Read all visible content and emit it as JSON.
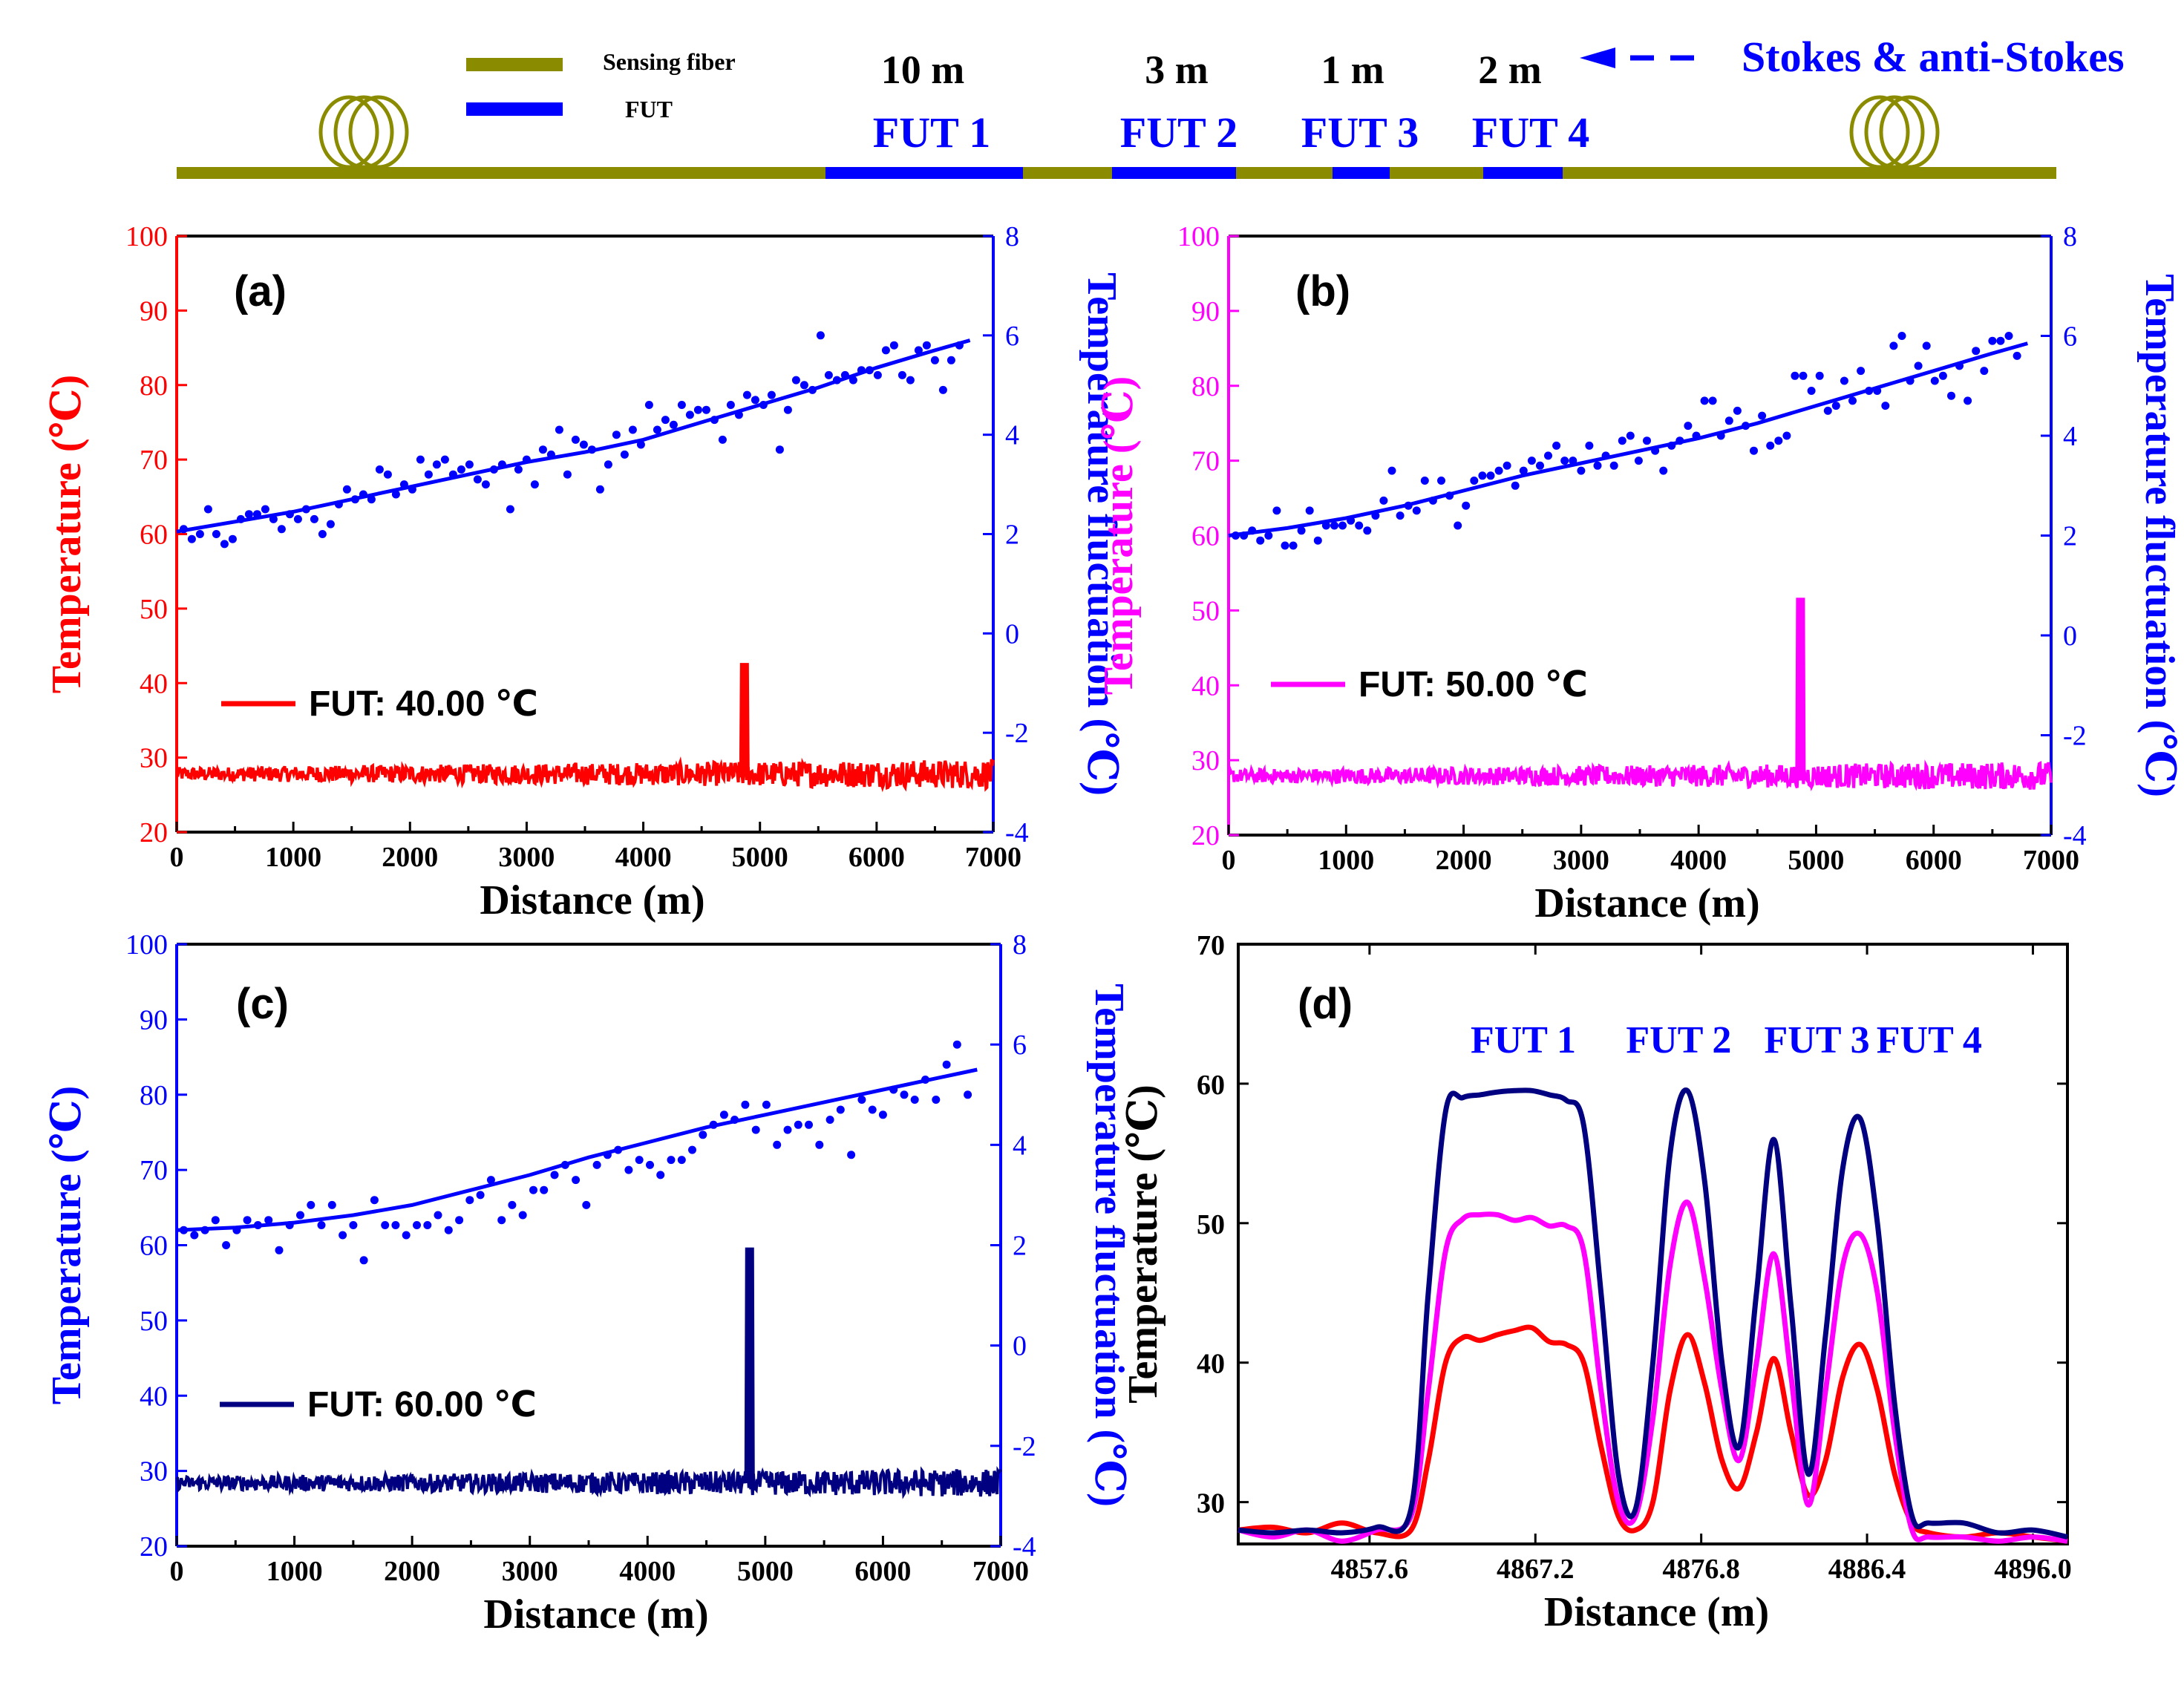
{
  "colors": {
    "fiber": "#8B8B00",
    "fut": "#0000FF",
    "series_a": "#FF0000",
    "series_b": "#FF00FF",
    "series_c": "#000080",
    "fluct": "#0000FF",
    "axis": "#000000"
  },
  "schematic": {
    "legend": {
      "sensing_fiber": "Sensing fiber",
      "fut": "FUT"
    },
    "direction_label": "Stokes & anti-Stokes",
    "segments": [
      {
        "length": "10 m",
        "label": "FUT 1"
      },
      {
        "length": "3 m",
        "label": "FUT 2"
      },
      {
        "length": "1 m",
        "label": "FUT 3"
      },
      {
        "length": "2 m",
        "label": "FUT 4"
      }
    ]
  },
  "chart_data": [
    {
      "id": "a",
      "type": "line",
      "panel_label": "(a)",
      "xlabel": "Distance (m)",
      "ylabel_left": "Temperature (℃)",
      "ylabel_right": "Temperature fluctuation (℃)",
      "xlim": [
        0,
        7000
      ],
      "ylim_left": [
        20,
        100
      ],
      "ylim_right": [
        -4,
        8
      ],
      "x_ticks": [
        0,
        1000,
        2000,
        3000,
        4000,
        5000,
        6000,
        7000
      ],
      "y_ticks_left": [
        20,
        30,
        40,
        50,
        60,
        70,
        80,
        90,
        100
      ],
      "y_ticks_right": [
        -4,
        -2,
        0,
        2,
        4,
        6,
        8
      ],
      "legend": "FUT: 40.00 ℃",
      "series_color": "#FF0000",
      "temperature_trace": {
        "baseline": 27.8,
        "noise_amp_start": 0.9,
        "noise_amp_end": 2.0,
        "range": [
          0,
          7000
        ],
        "peak": {
          "x": 4867,
          "value": 42.5
        }
      },
      "fluctuation_fit": {
        "x": [
          0,
          500,
          1000,
          1500,
          2000,
          2500,
          3000,
          3500,
          4000,
          4500,
          5000,
          5500,
          6000,
          6500,
          6800
        ],
        "y": [
          2.05,
          2.25,
          2.45,
          2.7,
          2.95,
          3.2,
          3.45,
          3.65,
          3.9,
          4.25,
          4.6,
          4.95,
          5.35,
          5.7,
          5.9
        ]
      },
      "fluctuation_points": {
        "x": [
          60,
          130,
          200,
          270,
          340,
          410,
          480,
          550,
          620,
          690,
          760,
          830,
          900,
          970,
          1040,
          1110,
          1180,
          1250,
          1320,
          1390,
          1460,
          1530,
          1600,
          1670,
          1740,
          1810,
          1880,
          1950,
          2020,
          2090,
          2160,
          2230,
          2300,
          2370,
          2440,
          2510,
          2580,
          2650,
          2720,
          2790,
          2860,
          2930,
          3000,
          3070,
          3140,
          3210,
          3280,
          3350,
          3420,
          3490,
          3560,
          3630,
          3700,
          3770,
          3840,
          3910,
          3980,
          4050,
          4120,
          4190,
          4260,
          4330,
          4400,
          4470,
          4540,
          4610,
          4680,
          4750,
          4820,
          4890,
          4960,
          5030,
          5100,
          5170,
          5240,
          5310,
          5380,
          5450,
          5520,
          5590,
          5660,
          5730,
          5800,
          5870,
          5940,
          6010,
          6080,
          6150,
          6220,
          6290,
          6360,
          6430,
          6500,
          6570,
          6640,
          6710
        ],
        "y": [
          2.1,
          1.9,
          2.0,
          2.5,
          2.0,
          1.8,
          1.9,
          2.3,
          2.4,
          2.4,
          2.5,
          2.3,
          2.1,
          2.4,
          2.3,
          2.5,
          2.3,
          2.0,
          2.2,
          2.6,
          2.9,
          2.7,
          2.8,
          2.7,
          3.3,
          3.2,
          2.8,
          3.0,
          2.9,
          3.5,
          3.2,
          3.4,
          3.5,
          3.2,
          3.3,
          3.4,
          3.1,
          3.0,
          3.3,
          3.4,
          2.5,
          3.3,
          3.5,
          3.0,
          3.7,
          3.6,
          4.1,
          3.2,
          3.9,
          3.8,
          3.7,
          2.9,
          3.4,
          4.0,
          3.6,
          4.1,
          3.8,
          4.6,
          4.1,
          4.3,
          4.2,
          4.6,
          4.4,
          4.5,
          4.5,
          4.3,
          3.9,
          4.6,
          4.4,
          4.8,
          4.7,
          4.6,
          4.8,
          3.7,
          4.5,
          5.1,
          5.0,
          4.9,
          6.0,
          5.2,
          5.1,
          5.2,
          5.1,
          5.3,
          5.3,
          5.2,
          5.7,
          5.8,
          5.2,
          5.1,
          5.7,
          5.8,
          5.5,
          4.9,
          5.5,
          5.8
        ]
      }
    },
    {
      "id": "b",
      "type": "line",
      "panel_label": "(b)",
      "xlabel": "Distance (m)",
      "ylabel_left": "Temperature (℃)",
      "ylabel_right": "Temperature fluctuation (℃)",
      "xlim": [
        0,
        7000
      ],
      "ylim_left": [
        20,
        100
      ],
      "ylim_right": [
        -4,
        8
      ],
      "x_ticks": [
        0,
        1000,
        2000,
        3000,
        4000,
        5000,
        6000,
        7000
      ],
      "y_ticks_left": [
        20,
        30,
        40,
        50,
        60,
        70,
        80,
        90,
        100
      ],
      "y_ticks_right": [
        -4,
        -2,
        0,
        2,
        4,
        6,
        8
      ],
      "legend": "FUT: 50.00 ℃",
      "series_color": "#FF00FF",
      "temperature_trace": {
        "baseline": 27.9,
        "noise_amp_start": 0.9,
        "noise_amp_end": 1.9,
        "range": [
          0,
          7000
        ],
        "peak": {
          "x": 4867,
          "value": 51.5
        }
      },
      "fluctuation_fit": {
        "x": [
          0,
          500,
          1000,
          1500,
          2000,
          2500,
          3000,
          3500,
          4000,
          4500,
          5000,
          5500,
          6000,
          6500,
          6800
        ],
        "y": [
          2.0,
          2.15,
          2.35,
          2.6,
          2.9,
          3.2,
          3.45,
          3.7,
          3.95,
          4.25,
          4.6,
          4.95,
          5.3,
          5.65,
          5.85
        ]
      },
      "fluctuation_points": {
        "x": [
          60,
          130,
          200,
          270,
          340,
          410,
          480,
          550,
          620,
          690,
          760,
          830,
          900,
          970,
          1040,
          1110,
          1180,
          1250,
          1320,
          1390,
          1460,
          1530,
          1600,
          1670,
          1740,
          1810,
          1880,
          1950,
          2020,
          2090,
          2160,
          2230,
          2300,
          2370,
          2440,
          2510,
          2580,
          2650,
          2720,
          2790,
          2860,
          2930,
          3000,
          3070,
          3140,
          3210,
          3280,
          3350,
          3420,
          3490,
          3560,
          3630,
          3700,
          3770,
          3840,
          3910,
          3980,
          4050,
          4120,
          4190,
          4260,
          4330,
          4400,
          4470,
          4540,
          4610,
          4680,
          4750,
          4820,
          4890,
          4960,
          5030,
          5100,
          5170,
          5240,
          5310,
          5380,
          5450,
          5520,
          5590,
          5660,
          5730,
          5800,
          5870,
          5940,
          6010,
          6080,
          6150,
          6220,
          6290,
          6360,
          6430,
          6500,
          6570,
          6640,
          6710
        ],
        "y": [
          2.0,
          2.0,
          2.1,
          1.9,
          2.0,
          2.5,
          1.8,
          1.8,
          2.1,
          2.5,
          1.9,
          2.2,
          2.2,
          2.2,
          2.3,
          2.2,
          2.1,
          2.4,
          2.7,
          3.3,
          2.4,
          2.6,
          2.5,
          3.1,
          2.7,
          3.1,
          2.8,
          2.2,
          2.6,
          3.1,
          3.2,
          3.2,
          3.3,
          3.4,
          3.0,
          3.3,
          3.5,
          3.4,
          3.6,
          3.8,
          3.5,
          3.5,
          3.3,
          3.8,
          3.4,
          3.6,
          3.4,
          3.9,
          4.0,
          3.5,
          3.9,
          3.7,
          3.3,
          3.8,
          3.9,
          4.2,
          4.0,
          4.7,
          4.7,
          4.0,
          4.3,
          4.5,
          4.2,
          3.7,
          4.4,
          3.8,
          3.9,
          4.0,
          5.2,
          5.2,
          4.9,
          5.2,
          4.5,
          4.6,
          5.1,
          4.7,
          5.3,
          4.9,
          4.9,
          4.6,
          5.8,
          6.0,
          5.1,
          5.4,
          5.8,
          5.1,
          5.2,
          4.8,
          5.4,
          4.7,
          5.7,
          5.3,
          5.9,
          5.9,
          6.0,
          5.6
        ]
      }
    },
    {
      "id": "c",
      "type": "line",
      "panel_label": "(c)",
      "xlabel": "Distance (m)",
      "ylabel_left": "Temperature (℃)",
      "ylabel_right": "Temperature fluctuation (℃)",
      "xlim": [
        0,
        7000
      ],
      "ylim_left": [
        20,
        100
      ],
      "ylim_right": [
        -4,
        8
      ],
      "x_ticks": [
        0,
        1000,
        2000,
        3000,
        4000,
        5000,
        6000,
        7000
      ],
      "y_ticks_left": [
        20,
        30,
        40,
        50,
        60,
        70,
        80,
        90,
        100
      ],
      "y_ticks_right": [
        -4,
        -2,
        0,
        2,
        4,
        6,
        8
      ],
      "legend": "FUT: 60.00 ℃",
      "series_color": "#000080",
      "temperature_trace": {
        "baseline": 28.4,
        "noise_amp_start": 0.9,
        "noise_amp_end": 1.9,
        "range": [
          0,
          7000
        ],
        "peak": {
          "x": 4867,
          "value": 59.5
        }
      },
      "fluctuation_fit": {
        "x": [
          0,
          500,
          1000,
          1500,
          2000,
          2500,
          3000,
          3500,
          4000,
          4500,
          5000,
          5500,
          6000,
          6500,
          6800
        ],
        "y": [
          2.3,
          2.35,
          2.45,
          2.6,
          2.8,
          3.1,
          3.4,
          3.75,
          4.05,
          4.35,
          4.6,
          4.85,
          5.1,
          5.35,
          5.5
        ]
      },
      "fluctuation_points": {
        "x": [
          60,
          150,
          240,
          330,
          420,
          510,
          600,
          690,
          780,
          870,
          960,
          1050,
          1140,
          1230,
          1320,
          1410,
          1500,
          1590,
          1680,
          1770,
          1860,
          1950,
          2040,
          2130,
          2220,
          2310,
          2400,
          2490,
          2580,
          2670,
          2760,
          2850,
          2940,
          3030,
          3120,
          3210,
          3300,
          3390,
          3480,
          3570,
          3660,
          3750,
          3840,
          3930,
          4020,
          4110,
          4200,
          4290,
          4380,
          4470,
          4560,
          4650,
          4740,
          4830,
          4920,
          5010,
          5100,
          5190,
          5280,
          5370,
          5460,
          5550,
          5640,
          5730,
          5820,
          5910,
          6000,
          6090,
          6180,
          6270,
          6360,
          6450,
          6540,
          6630,
          6720
        ],
        "y": [
          2.3,
          2.2,
          2.3,
          2.5,
          2.0,
          2.3,
          2.5,
          2.4,
          2.5,
          1.9,
          2.4,
          2.6,
          2.8,
          2.4,
          2.8,
          2.2,
          2.4,
          1.7,
          2.9,
          2.4,
          2.4,
          2.2,
          2.4,
          2.4,
          2.6,
          2.3,
          2.5,
          2.9,
          3.0,
          3.3,
          2.5,
          2.8,
          2.6,
          3.1,
          3.1,
          3.4,
          3.6,
          3.3,
          2.8,
          3.6,
          3.8,
          3.9,
          3.5,
          3.7,
          3.6,
          3.4,
          3.7,
          3.7,
          3.9,
          4.2,
          4.4,
          4.6,
          4.5,
          4.8,
          4.3,
          4.8,
          4.0,
          4.3,
          4.4,
          4.4,
          4.0,
          4.5,
          4.7,
          3.8,
          4.9,
          4.7,
          4.6,
          5.1,
          5.0,
          4.9,
          5.3,
          4.9,
          5.6,
          6.0,
          5.0
        ]
      }
    },
    {
      "id": "d",
      "type": "line",
      "panel_label": "(d)",
      "xlabel": "Distance (m)",
      "ylabel": "Temperature (℃)",
      "xlim": [
        4850,
        4898
      ],
      "ylim": [
        27,
        70
      ],
      "x_ticks": [
        4857.6,
        4867.2,
        4876.8,
        4886.4,
        4896.0
      ],
      "x_tick_labels": [
        "4857.6",
        "4867.2",
        "4876.8",
        "4886.4",
        "4896.0"
      ],
      "y_ticks": [
        30,
        40,
        50,
        60,
        70
      ],
      "annotations": [
        "FUT 1",
        "FUT 2",
        "FUT 3",
        "FUT 4"
      ],
      "annotation_x": [
        4866.5,
        4875.5,
        4883.5,
        4890.0
      ],
      "series": [
        {
          "name": "FUT: 40.00 ℃",
          "color": "#FF0000",
          "x": [
            4850,
            4852,
            4854,
            4856,
            4858,
            4860,
            4861,
            4862,
            4863,
            4864,
            4865,
            4866,
            4867,
            4868,
            4869,
            4870,
            4871,
            4872,
            4873,
            4874,
            4875,
            4876,
            4877,
            4878,
            4879,
            4880,
            4881,
            4882,
            4883,
            4884,
            4885,
            4886,
            4887,
            4888,
            4889,
            4890,
            4892,
            4894,
            4896,
            4898
          ],
          "y": [
            28.0,
            28.2,
            27.8,
            28.5,
            27.8,
            28.0,
            33,
            40,
            41.8,
            41.6,
            42.0,
            42.3,
            42.5,
            41.5,
            41.3,
            40.0,
            34,
            29,
            28.0,
            30,
            38,
            42.0,
            38.5,
            33,
            31.0,
            35,
            40.3,
            35,
            30.5,
            33,
            39,
            41.3,
            38,
            32,
            28.5,
            27.8,
            27.5,
            27.8,
            27.5,
            27.2
          ]
        },
        {
          "name": "FUT: 50.00 ℃",
          "color": "#FF00FF",
          "x": [
            4850,
            4852,
            4854,
            4856,
            4858,
            4860,
            4861,
            4862,
            4863,
            4864,
            4865,
            4866,
            4867,
            4868,
            4869,
            4870,
            4871,
            4872,
            4873,
            4874,
            4875,
            4876,
            4877,
            4878,
            4879,
            4880,
            4881,
            4882,
            4883,
            4884,
            4885,
            4886,
            4887,
            4888,
            4889,
            4890,
            4892,
            4894,
            4896,
            4898
          ],
          "y": [
            28.0,
            27.5,
            28.0,
            27.2,
            28.0,
            29.0,
            38,
            48,
            50.3,
            50.6,
            50.6,
            50.2,
            50.4,
            49.8,
            49.8,
            48.0,
            38,
            30,
            29.0,
            36,
            47,
            51.5,
            46,
            38,
            33.0,
            40,
            47.8,
            39,
            29.8,
            38,
            47,
            49.2,
            45,
            35,
            28.0,
            27.5,
            27.5,
            27.2,
            27.5,
            27.2
          ]
        },
        {
          "name": "FUT: 60.00 ℃",
          "color": "#000080",
          "x": [
            4850,
            4852,
            4854,
            4856,
            4858,
            4860,
            4861,
            4862,
            4863,
            4864,
            4865,
            4866,
            4867,
            4868,
            4869,
            4870,
            4871,
            4872,
            4873,
            4874,
            4875,
            4876,
            4877,
            4878,
            4879,
            4880,
            4881,
            4882,
            4883,
            4884,
            4885,
            4886,
            4887,
            4888,
            4889,
            4890,
            4892,
            4894,
            4896,
            4898
          ],
          "y": [
            28.0,
            27.8,
            28.0,
            27.8,
            28.2,
            29.5,
            45,
            58,
            59.0,
            59.2,
            59.4,
            59.5,
            59.5,
            59.2,
            58.8,
            57.0,
            45,
            32,
            29.5,
            40,
            55,
            59.5,
            53,
            40,
            34.0,
            45,
            56.0,
            44,
            32.0,
            42,
            54,
            57.5,
            50,
            37,
            29.0,
            28.5,
            28.5,
            27.8,
            28.0,
            27.5
          ]
        }
      ]
    }
  ]
}
